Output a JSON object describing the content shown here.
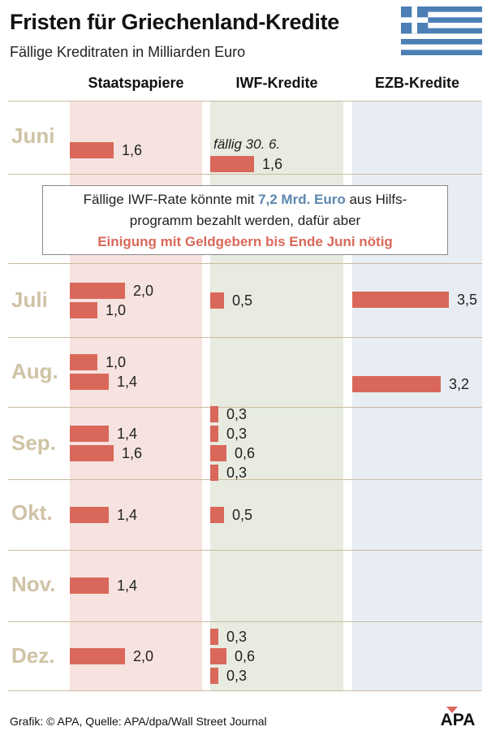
{
  "title": "Fristen für Griechenland-Kredite",
  "subtitle": "Fällige Kreditraten in Milliarden Euro",
  "columns": [
    "Staatspapiere",
    "IWF-Kredite",
    "EZB-Kredite"
  ],
  "chart_data": {
    "type": "bar",
    "title": "Fristen für Griechenland-Kredite",
    "unit": "Milliarden Euro",
    "categories": [
      "Juni",
      "Juli",
      "Aug.",
      "Sep.",
      "Okt.",
      "Nov.",
      "Dez."
    ],
    "series": [
      {
        "name": "Staatspapiere",
        "values": [
          [
            1.6
          ],
          [
            2.0,
            1.0
          ],
          [
            1.0,
            1.4
          ],
          [
            1.4,
            1.6
          ],
          [
            1.4
          ],
          [
            1.4
          ],
          [
            2.0
          ]
        ],
        "labels": [
          [
            "1,6"
          ],
          [
            "2,0",
            "1,0"
          ],
          [
            "1,0",
            "1,4"
          ],
          [
            "1,4",
            "1,6"
          ],
          [
            "1,4"
          ],
          [
            "1,4"
          ],
          [
            "2,0"
          ]
        ]
      },
      {
        "name": "IWF-Kredite",
        "values": [
          [
            1.6
          ],
          [
            0.5
          ],
          [],
          [
            0.3,
            0.3,
            0.6,
            0.3
          ],
          [
            0.5
          ],
          [],
          [
            0.3,
            0.6,
            0.3
          ]
        ],
        "labels": [
          [
            "1,6"
          ],
          [
            "0,5"
          ],
          [],
          [
            "0,3",
            "0,3",
            "0,6",
            "0,3"
          ],
          [
            "0,5"
          ],
          [],
          [
            "0,3",
            "0,6",
            "0,3"
          ]
        ]
      },
      {
        "name": "EZB-Kredite",
        "values": [
          [],
          [
            3.5
          ],
          [
            3.2
          ],
          [],
          [],
          [],
          []
        ],
        "labels": [
          [],
          [
            "3,5"
          ],
          [
            "3,2"
          ],
          [],
          [],
          [],
          []
        ]
      }
    ],
    "annotations": {
      "juni_iwf_note": "fällig 30. 6."
    }
  },
  "callout": {
    "line1_pre": "Fällige IWF-Rate könnte mit ",
    "line1_highlight": "7,2 Mrd. Euro",
    "line1_post": " aus Hilfs-",
    "line2": "programm bezahlt werden, dafür aber",
    "line3": "Einigung mit Geldgebern bis Ende Juni nötig"
  },
  "footer": "Grafik: © APA, Quelle: APA/dpa/Wall Street Journal",
  "logo_text": "APA",
  "colors": {
    "bar": "#d9685a",
    "staat_bg": "#f6e3df",
    "iwf_bg": "#e7ebe0",
    "ezb_bg": "#e7edf3",
    "month_text": "#cfc3a6",
    "highlight_blue": "#5b86ad",
    "flag_blue": "#4c7fb5"
  }
}
